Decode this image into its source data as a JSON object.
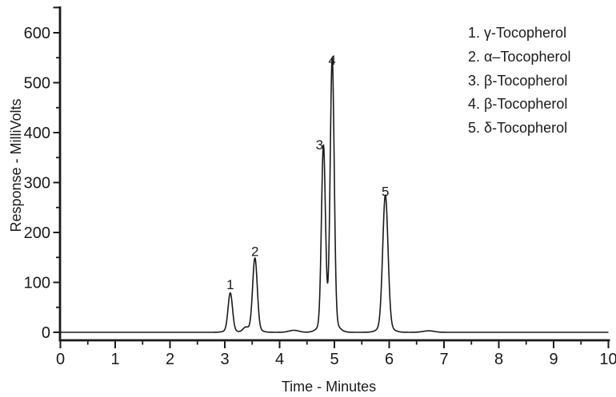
{
  "chart_data": {
    "type": "line",
    "title": "",
    "xlabel": "Time - Minutes",
    "ylabel": "Response - MilliVolts",
    "xlim": [
      0,
      10
    ],
    "ylim": [
      0,
      650
    ],
    "x_ticks": [
      0,
      1,
      2,
      3,
      4,
      5,
      6,
      7,
      8,
      9,
      10
    ],
    "x_minor_step": 0.5,
    "y_ticks": [
      0,
      100,
      200,
      300,
      400,
      500,
      600
    ],
    "y_minor_step": 50,
    "grid": false,
    "legend_position": "upper-right",
    "line_color": "#1a1a1a",
    "background_color": "#ffffff",
    "baseline_mv": 0,
    "peaks": [
      {
        "label": "1",
        "compound": "γ-Tocopherol",
        "time_min": 3.1,
        "height_mv": 75,
        "sigma_min": 0.04,
        "foot_mv": 4,
        "foot_sigma_min": 0.1
      },
      {
        "label": "2",
        "compound": "α-Tocopherol",
        "time_min": 3.55,
        "height_mv": 142,
        "sigma_min": 0.042,
        "foot_mv": 7,
        "foot_sigma_min": 0.1
      },
      {
        "label": "3",
        "compound": "β-Tocopherol",
        "time_min": 4.8,
        "height_mv": 355,
        "sigma_min": 0.036,
        "foot_mv": 14,
        "foot_sigma_min": 0.105
      },
      {
        "label": "4",
        "compound": "β-Tocopherol",
        "time_min": 4.96,
        "height_mv": 525,
        "sigma_min": 0.036,
        "foot_mv": 21,
        "foot_sigma_min": 0.105
      },
      {
        "label": "5",
        "compound": "δ-Tocopherol",
        "time_min": 5.93,
        "height_mv": 262,
        "sigma_min": 0.048,
        "foot_mv": 13,
        "foot_sigma_min": 0.115
      }
    ],
    "minor_features": [
      {
        "time_min": 3.38,
        "height_mv": 9,
        "sigma_min": 0.05
      },
      {
        "time_min": 4.26,
        "height_mv": 4,
        "sigma_min": 0.09
      },
      {
        "time_min": 6.72,
        "height_mv": 3,
        "sigma_min": 0.1
      }
    ],
    "legend": [
      "1. γ-Tocopherol",
      "2. α–Tocopherol",
      "3. β-Tocopherol",
      "4. β-Tocopherol",
      "5. δ-Tocopherol"
    ]
  }
}
